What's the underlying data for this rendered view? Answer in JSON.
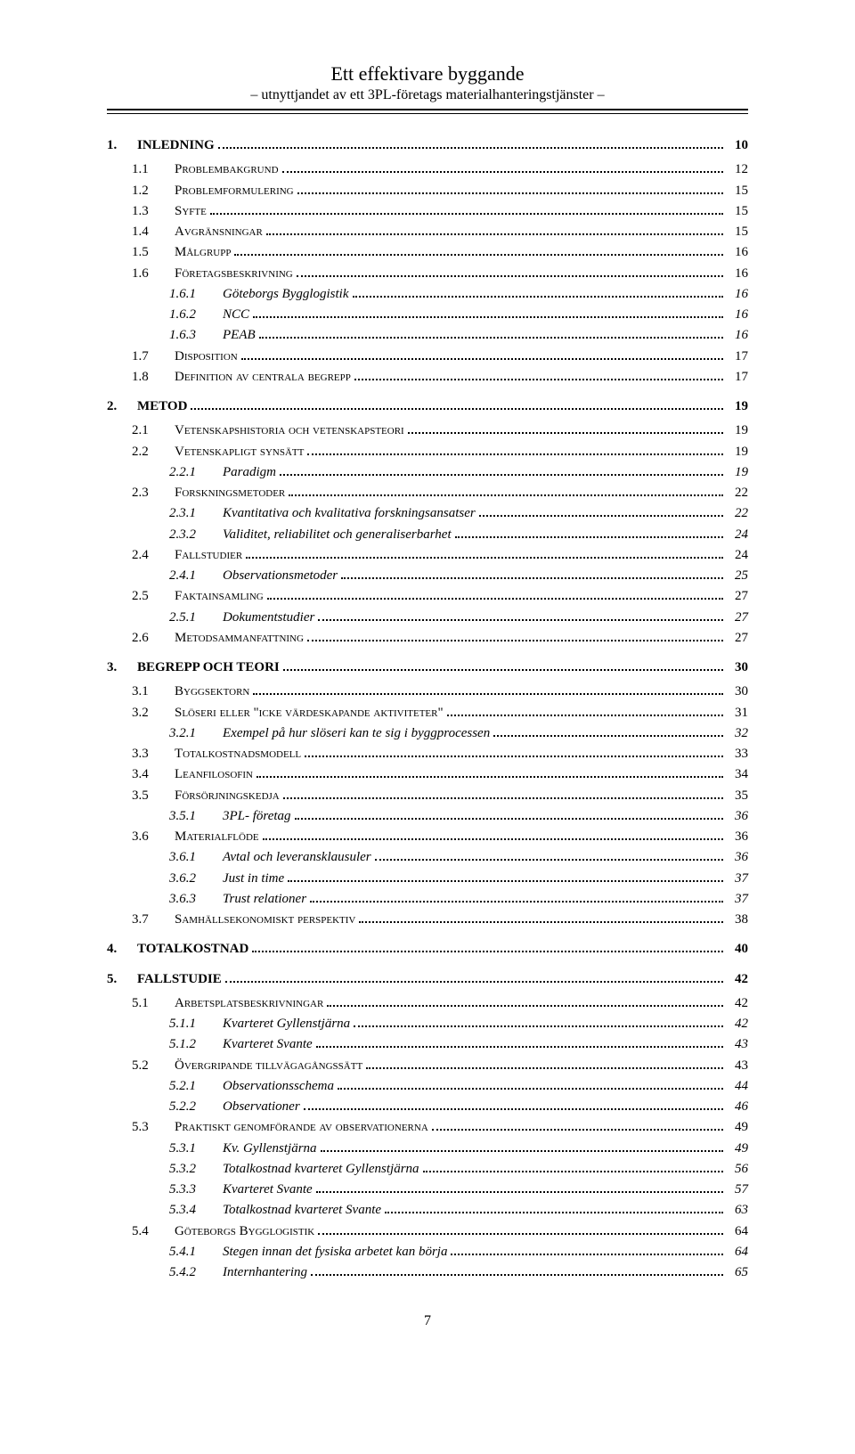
{
  "header": {
    "title": "Ett effektivare byggande",
    "subtitle": "– utnyttjandet av ett 3PL-företags materialhanteringstjänster –"
  },
  "page_number": "7",
  "toc": [
    {
      "level": 1,
      "num": "1.",
      "label": "INLEDNING",
      "page": "10"
    },
    {
      "level": 2,
      "num": "1.1",
      "label": "Problembakgrund",
      "page": "12"
    },
    {
      "level": 2,
      "num": "1.2",
      "label": "Problemformulering",
      "page": "15"
    },
    {
      "level": 2,
      "num": "1.3",
      "label": "Syfte",
      "page": "15"
    },
    {
      "level": 2,
      "num": "1.4",
      "label": "Avgränsningar",
      "page": "15"
    },
    {
      "level": 2,
      "num": "1.5",
      "label": "Målgrupp",
      "page": "16"
    },
    {
      "level": 2,
      "num": "1.6",
      "label": "Företagsbeskrivning",
      "page": "16"
    },
    {
      "level": 3,
      "num": "1.6.1",
      "label": "Göteborgs Bygglogistik",
      "page": "16"
    },
    {
      "level": 3,
      "num": "1.6.2",
      "label": "NCC",
      "page": "16"
    },
    {
      "level": 3,
      "num": "1.6.3",
      "label": "PEAB",
      "page": "16"
    },
    {
      "level": 2,
      "num": "1.7",
      "label": "Disposition",
      "page": "17"
    },
    {
      "level": 2,
      "num": "1.8",
      "label": "Definition av centrala begrepp",
      "page": "17"
    },
    {
      "level": 1,
      "num": "2.",
      "label": "METOD",
      "page": "19"
    },
    {
      "level": 2,
      "num": "2.1",
      "label": "Vetenskapshistoria och vetenskapsteori",
      "page": "19"
    },
    {
      "level": 2,
      "num": "2.2",
      "label": "Vetenskapligt synsätt",
      "page": "19"
    },
    {
      "level": 3,
      "num": "2.2.1",
      "label": "Paradigm",
      "page": "19"
    },
    {
      "level": 2,
      "num": "2.3",
      "label": "Forskningsmetoder",
      "page": "22"
    },
    {
      "level": 3,
      "num": "2.3.1",
      "label": "Kvantitativa och kvalitativa forskningsansatser",
      "page": "22"
    },
    {
      "level": 3,
      "num": "2.3.2",
      "label": "Validitet, reliabilitet och generaliserbarhet",
      "page": "24"
    },
    {
      "level": 2,
      "num": "2.4",
      "label": "Fallstudier",
      "page": "24"
    },
    {
      "level": 3,
      "num": "2.4.1",
      "label": "Observationsmetoder",
      "page": "25"
    },
    {
      "level": 2,
      "num": "2.5",
      "label": "Faktainsamling",
      "page": "27"
    },
    {
      "level": 3,
      "num": "2.5.1",
      "label": "Dokumentstudier",
      "page": "27"
    },
    {
      "level": 2,
      "num": "2.6",
      "label": "Metodsammanfattning",
      "page": "27"
    },
    {
      "level": 1,
      "num": "3.",
      "label": "BEGREPP OCH TEORI",
      "page": "30"
    },
    {
      "level": 2,
      "num": "3.1",
      "label": "Byggsektorn",
      "page": "30"
    },
    {
      "level": 2,
      "num": "3.2",
      "label": "Slöseri eller \"icke värdeskapande aktiviteter\"",
      "page": "31"
    },
    {
      "level": 3,
      "num": "3.2.1",
      "label": "Exempel på hur slöseri kan te sig i byggprocessen",
      "page": "32"
    },
    {
      "level": 2,
      "num": "3.3",
      "label": "Totalkostnadsmodell",
      "page": "33"
    },
    {
      "level": 2,
      "num": "3.4",
      "label": "Leanfilosofin",
      "page": "34"
    },
    {
      "level": 2,
      "num": "3.5",
      "label": "Försörjningskedja",
      "page": "35"
    },
    {
      "level": 3,
      "num": "3.5.1",
      "label": "3PL- företag",
      "page": "36"
    },
    {
      "level": 2,
      "num": "3.6",
      "label": "Materialflöde",
      "page": "36"
    },
    {
      "level": 3,
      "num": "3.6.1",
      "label": "Avtal och leveransklausuler",
      "page": "36"
    },
    {
      "level": 3,
      "num": "3.6.2",
      "label": "Just in time",
      "page": "37"
    },
    {
      "level": 3,
      "num": "3.6.3",
      "label": "Trust relationer",
      "page": "37"
    },
    {
      "level": 2,
      "num": "3.7",
      "label": "Samhällsekonomiskt perspektiv",
      "page": "38"
    },
    {
      "level": 1,
      "num": "4.",
      "label": "TOTALKOSTNAD",
      "page": "40"
    },
    {
      "level": 1,
      "num": "5.",
      "label": "FALLSTUDIE",
      "page": "42"
    },
    {
      "level": 2,
      "num": "5.1",
      "label": "Arbetsplatsbeskrivningar",
      "page": "42"
    },
    {
      "level": 3,
      "num": "5.1.1",
      "label": "Kvarteret Gyllenstjärna",
      "page": "42"
    },
    {
      "level": 3,
      "num": "5.1.2",
      "label": "Kvarteret Svante",
      "page": "43"
    },
    {
      "level": 2,
      "num": "5.2",
      "label": "Övergripande tillvägagångssätt",
      "page": "43"
    },
    {
      "level": 3,
      "num": "5.2.1",
      "label": "Observationsschema",
      "page": "44"
    },
    {
      "level": 3,
      "num": "5.2.2",
      "label": "Observationer",
      "page": "46"
    },
    {
      "level": 2,
      "num": "5.3",
      "label": "Praktiskt genomförande av observationerna",
      "page": "49"
    },
    {
      "level": 3,
      "num": "5.3.1",
      "label": "Kv. Gyllenstjärna",
      "page": "49"
    },
    {
      "level": 3,
      "num": "5.3.2",
      "label": "Totalkostnad kvarteret Gyllenstjärna",
      "page": "56"
    },
    {
      "level": 3,
      "num": "5.3.3",
      "label": "Kvarteret Svante",
      "page": "57"
    },
    {
      "level": 3,
      "num": "5.3.4",
      "label": "Totalkostnad kvarteret Svante",
      "page": "63"
    },
    {
      "level": 2,
      "num": "5.4",
      "label": "Göteborgs Bygglogistik",
      "page": "64"
    },
    {
      "level": 3,
      "num": "5.4.1",
      "label": "Stegen innan det fysiska arbetet kan börja",
      "page": "64"
    },
    {
      "level": 3,
      "num": "5.4.2",
      "label": "Internhantering",
      "page": "65"
    }
  ]
}
